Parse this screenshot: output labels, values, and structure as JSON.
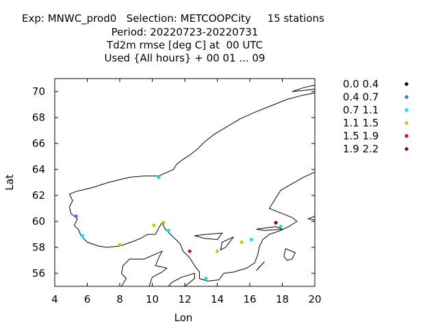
{
  "header": {
    "line1": "Exp: MNWC_prod0   Selection: METCOOPCity     15 stations",
    "line2": "Period: 20220723-20220731",
    "line3": "Td2m rmse [deg C] at  00 UTC",
    "line4": "Used {All hours} + 00 01 ... 09"
  },
  "chart_data": {
    "type": "scatter",
    "xlabel": "Lon",
    "ylabel": "Lat",
    "xlim": [
      4,
      20
    ],
    "ylim": [
      55,
      71
    ],
    "xticks": [
      4,
      6,
      8,
      10,
      12,
      14,
      16,
      18,
      20
    ],
    "yticks": [
      56,
      58,
      60,
      62,
      64,
      66,
      68,
      70
    ],
    "grid": false,
    "legend_position": "right",
    "legend": [
      {
        "label": "0.0 0.4",
        "color": "#000000"
      },
      {
        "label": "0.4 0.7",
        "color": "#4169e1"
      },
      {
        "label": "0.7 1.1",
        "color": "#00e5ee"
      },
      {
        "label": "1.1 1.5",
        "color": "#c8c800"
      },
      {
        "label": "1.5 1.9",
        "color": "#e60000"
      },
      {
        "label": "1.9 2.2",
        "color": "#8b0000"
      }
    ],
    "points": [
      {
        "lon": 10.4,
        "lat": 63.4,
        "class": 2
      },
      {
        "lon": 5.3,
        "lat": 60.4,
        "class": 1
      },
      {
        "lon": 5.7,
        "lat": 58.9,
        "class": 2
      },
      {
        "lon": 8.0,
        "lat": 58.2,
        "class": 3
      },
      {
        "lon": 10.1,
        "lat": 59.7,
        "class": 3
      },
      {
        "lon": 10.7,
        "lat": 59.9,
        "class": 3
      },
      {
        "lon": 11.0,
        "lat": 59.3,
        "class": 2
      },
      {
        "lon": 12.3,
        "lat": 57.7,
        "class": 4
      },
      {
        "lon": 14.0,
        "lat": 57.7,
        "class": 3
      },
      {
        "lon": 13.3,
        "lat": 55.6,
        "class": 2
      },
      {
        "lon": 15.5,
        "lat": 58.4,
        "class": 3
      },
      {
        "lon": 16.1,
        "lat": 58.6,
        "class": 2
      },
      {
        "lon": 17.6,
        "lat": 59.9,
        "class": 5
      },
      {
        "lon": 17.9,
        "lat": 59.6,
        "class": 2
      }
    ]
  }
}
